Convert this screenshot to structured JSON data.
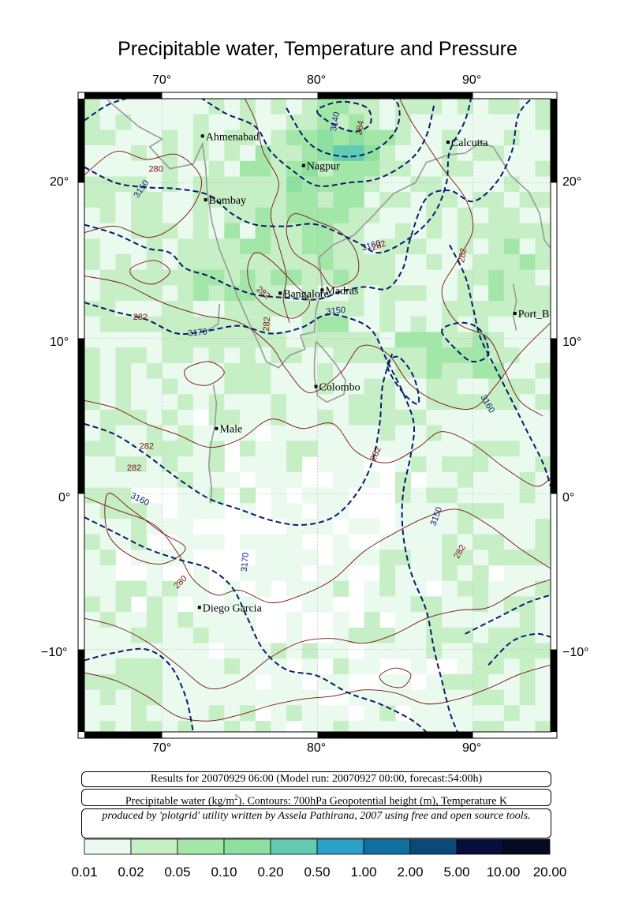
{
  "title": "Precipitable water, Temperature and Pressure",
  "map": {
    "lon_ticks": [
      "70°",
      "80°",
      "90°"
    ],
    "lat_ticks": [
      "20°",
      "10°",
      "0°",
      "−10°"
    ],
    "cities": [
      {
        "name": "Ahmenabad",
        "lon": 72.6,
        "lat": 23.0
      },
      {
        "name": "Calcutta",
        "lon": 88.4,
        "lat": 22.6
      },
      {
        "name": "Nagpur",
        "lon": 79.1,
        "lat": 21.1
      },
      {
        "name": "Bombay",
        "lon": 72.8,
        "lat": 18.9
      },
      {
        "name": "Madras",
        "lon": 80.3,
        "lat": 13.1
      },
      {
        "name": "Bangalore",
        "lon": 77.6,
        "lat": 12.9
      },
      {
        "name": "Port_B",
        "lon": 92.7,
        "lat": 11.6
      },
      {
        "name": "Colombo",
        "lon": 79.9,
        "lat": 6.9
      },
      {
        "name": "Male",
        "lon": 73.5,
        "lat": 4.2
      },
      {
        "name": "Diego Garcia",
        "lon": 72.4,
        "lat": -7.3
      }
    ],
    "height_contour_labels": [
      "3140",
      "3150",
      "3160",
      "3170",
      "3150",
      "3160",
      "3170",
      "3150",
      "3160"
    ],
    "temperature_contour_labels": [
      "280",
      "282",
      "284",
      "282",
      "282",
      "282",
      "282",
      "282",
      "282",
      "282",
      "282",
      "280"
    ],
    "colors": {
      "height_contour": "#0a1a6e",
      "temperature_contour": "#7a1010",
      "coast": "#999999"
    }
  },
  "info": {
    "results": "Results for 20070929 06:00 (Model run: 20070927 00:00, forecast:54:00h)",
    "legend_text_a": "Precipitable water (kg/m",
    "legend_sup": "2",
    "legend_text_b": ").  Contours: 700hPa Geopotential height (m), Temperature K",
    "credit": "produced by 'plotgrid' utility written by Assela Pathirana, 2007 using free and open source tools."
  },
  "colorbar": {
    "labels": [
      "0.01",
      "0.02",
      "0.05",
      "0.10",
      "0.20",
      "0.50",
      "1.00",
      "2.00",
      "5.00",
      "10.00",
      "20.00"
    ],
    "colors": [
      "#eafaee",
      "#c6efc6",
      "#a3e7a8",
      "#8ee0a0",
      "#64cbb3",
      "#2ba0c8",
      "#0f6fa0",
      "#0a4a78",
      "#050e3c",
      "#030a22",
      "#000008"
    ]
  }
}
